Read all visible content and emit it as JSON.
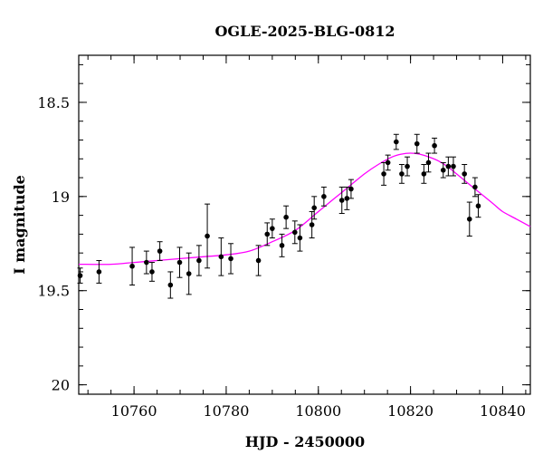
{
  "chart_data": {
    "type": "scatter",
    "title": "OGLE-2025-BLG-0812",
    "xlabel": "HJD - 2450000",
    "ylabel": "I magnitude",
    "xlim": [
      10748,
      10846
    ],
    "ylim": [
      20.05,
      18.25
    ],
    "y_inverted": true,
    "grid": false,
    "legend": "none",
    "xticks": [
      {
        "value": 10760,
        "label": "10760"
      },
      {
        "value": 10780,
        "label": "10780"
      },
      {
        "value": 10800,
        "label": "10800"
      },
      {
        "value": 10820,
        "label": "10820"
      },
      {
        "value": 10840,
        "label": "10840"
      }
    ],
    "yticks": [
      {
        "value": 18.5,
        "label": "18.5"
      },
      {
        "value": 19.0,
        "label": "19"
      },
      {
        "value": 19.5,
        "label": "19.5"
      },
      {
        "value": 20.0,
        "label": "20"
      }
    ],
    "x_minor_step": 5,
    "y_minor_step": 0.1,
    "series": [
      {
        "kind": "points-with-errors",
        "color": "#000000",
        "x": [
          10748.3,
          10752.4,
          10759.6,
          10762.7,
          10763.9,
          10765.6,
          10767.9,
          10769.9,
          10771.9,
          10774.1,
          10775.9,
          10778.9,
          10781.0,
          10787.0,
          10788.9,
          10790.0,
          10792.1,
          10793.0,
          10794.9,
          10796.0,
          10798.6,
          10799.1,
          10801.2,
          10805.1,
          10806.2,
          10807.1,
          10814.2,
          10815.1,
          10816.9,
          10818.1,
          10819.3,
          10821.4,
          10822.9,
          10823.9,
          10825.2,
          10827.1,
          10828.2,
          10829.3,
          10831.7,
          10832.8,
          10834.0,
          10834.7
        ],
        "y": [
          19.42,
          19.4,
          19.37,
          19.35,
          19.4,
          19.29,
          19.47,
          19.35,
          19.41,
          19.34,
          19.21,
          19.32,
          19.33,
          19.34,
          19.2,
          19.17,
          19.26,
          19.11,
          19.19,
          19.22,
          19.15,
          19.06,
          19.0,
          19.02,
          19.01,
          18.96,
          18.88,
          18.82,
          18.71,
          18.88,
          18.84,
          18.72,
          18.88,
          18.82,
          18.73,
          18.86,
          18.84,
          18.84,
          18.88,
          19.12,
          18.95,
          19.05
        ],
        "yerr": [
          0.04,
          0.06,
          0.1,
          0.06,
          0.05,
          0.05,
          0.07,
          0.08,
          0.11,
          0.08,
          0.17,
          0.1,
          0.08,
          0.08,
          0.06,
          0.05,
          0.06,
          0.06,
          0.06,
          0.07,
          0.07,
          0.06,
          0.05,
          0.07,
          0.06,
          0.05,
          0.06,
          0.04,
          0.04,
          0.05,
          0.05,
          0.05,
          0.05,
          0.05,
          0.04,
          0.04,
          0.05,
          0.05,
          0.05,
          0.09,
          0.05,
          0.06
        ]
      },
      {
        "kind": "model-curve",
        "color": "#ff00ff",
        "x": [
          10748,
          10755,
          10760,
          10765,
          10770,
          10775,
          10780,
          10785,
          10790,
          10795,
          10800,
          10805,
          10810,
          10813,
          10816,
          10818,
          10820,
          10822,
          10824,
          10826,
          10828,
          10830,
          10832,
          10834,
          10836,
          10838,
          10840,
          10843,
          10846
        ],
        "y": [
          19.36,
          19.36,
          19.35,
          19.34,
          19.33,
          19.32,
          19.31,
          19.29,
          19.24,
          19.18,
          19.08,
          18.98,
          18.88,
          18.83,
          18.79,
          18.775,
          18.77,
          18.775,
          18.79,
          18.81,
          18.84,
          18.88,
          18.92,
          18.96,
          19.0,
          19.04,
          19.08,
          19.12,
          19.16
        ]
      }
    ]
  }
}
